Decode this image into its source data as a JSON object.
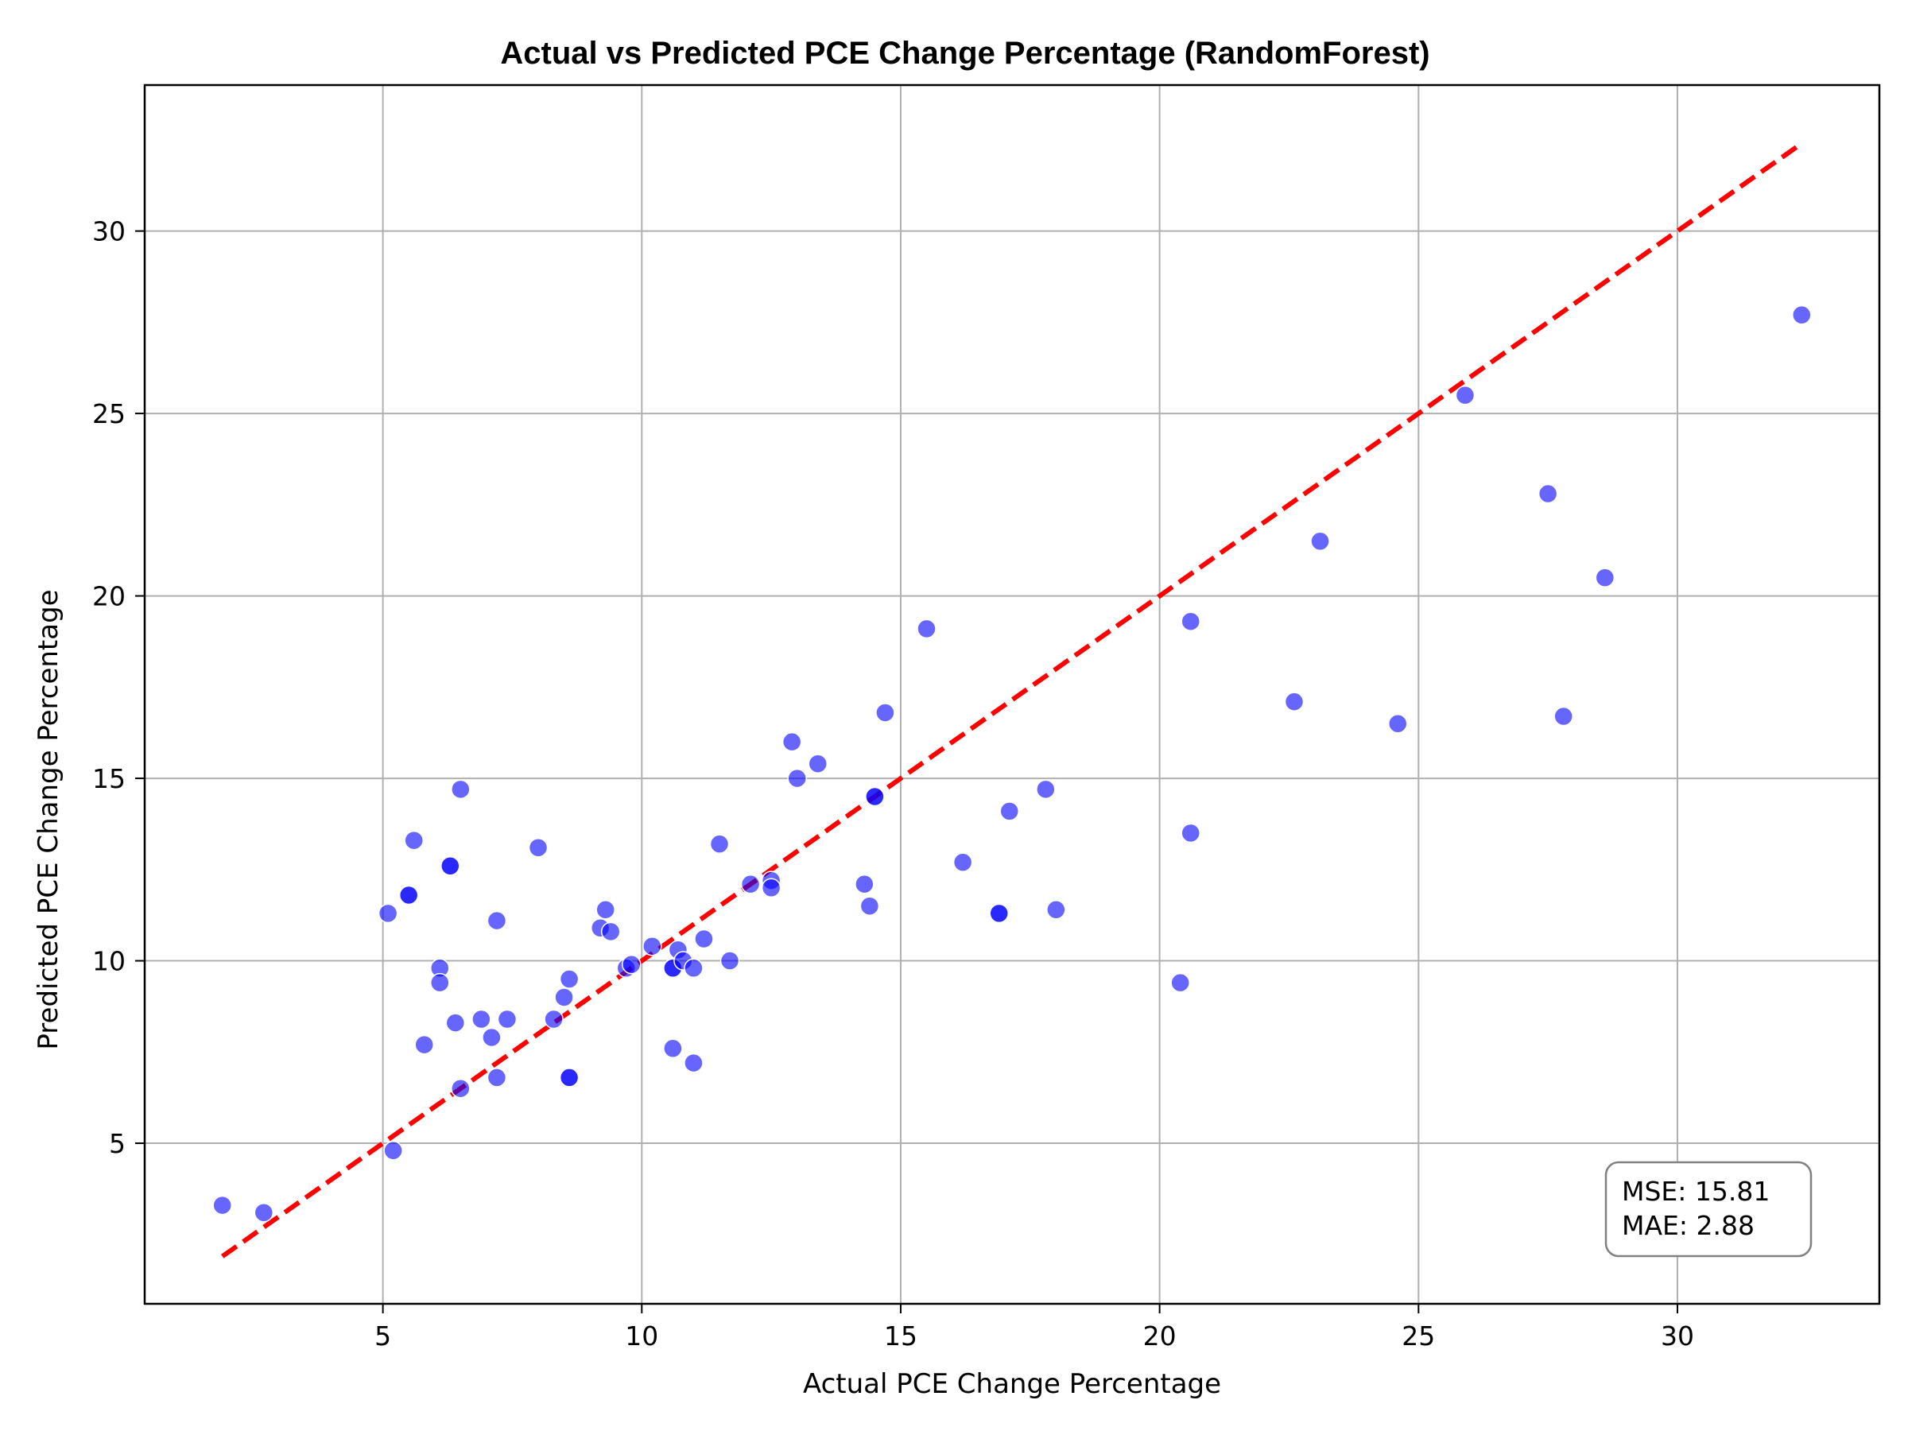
{
  "chart_data": {
    "type": "scatter",
    "title": "Actual vs Predicted PCE Change Percentage (RandomForest)",
    "xlabel": "Actual PCE Change Percentage",
    "ylabel": "Predicted PCE Change Percentage",
    "xlim": [
      0.4,
      33.9
    ],
    "ylim": [
      0.6,
      34.0
    ],
    "xticks": [
      5,
      10,
      15,
      20,
      25,
      30
    ],
    "yticks": [
      5,
      10,
      15,
      20,
      25,
      30
    ],
    "grid": true,
    "colors": {
      "points": "#0000ff",
      "reference_line": "#ff0000",
      "grid": "#b0b0b0",
      "stats_border": "#808080"
    },
    "reference_line": {
      "style": "dashed",
      "x": [
        1.9,
        32.4
      ],
      "y": [
        1.9,
        32.4
      ]
    },
    "stats": [
      "MSE: 15.81",
      "MAE: 2.88"
    ],
    "points": [
      {
        "x": 1.9,
        "y": 3.3
      },
      {
        "x": 2.7,
        "y": 3.1
      },
      {
        "x": 5.2,
        "y": 4.8
      },
      {
        "x": 5.1,
        "y": 11.3
      },
      {
        "x": 5.5,
        "y": 11.8
      },
      {
        "x": 5.5,
        "y": 11.8
      },
      {
        "x": 5.6,
        "y": 13.3
      },
      {
        "x": 5.8,
        "y": 7.7
      },
      {
        "x": 6.1,
        "y": 9.8
      },
      {
        "x": 6.1,
        "y": 9.4
      },
      {
        "x": 6.3,
        "y": 12.6
      },
      {
        "x": 6.3,
        "y": 12.6
      },
      {
        "x": 6.4,
        "y": 8.3
      },
      {
        "x": 6.5,
        "y": 6.5
      },
      {
        "x": 6.5,
        "y": 14.7
      },
      {
        "x": 6.9,
        "y": 8.4
      },
      {
        "x": 7.1,
        "y": 7.9
      },
      {
        "x": 7.2,
        "y": 6.8
      },
      {
        "x": 7.2,
        "y": 11.1
      },
      {
        "x": 7.4,
        "y": 8.4
      },
      {
        "x": 8.0,
        "y": 13.1
      },
      {
        "x": 8.3,
        "y": 8.4
      },
      {
        "x": 8.5,
        "y": 9.0
      },
      {
        "x": 8.6,
        "y": 9.5
      },
      {
        "x": 8.6,
        "y": 6.8
      },
      {
        "x": 8.6,
        "y": 6.8
      },
      {
        "x": 9.2,
        "y": 10.9
      },
      {
        "x": 9.3,
        "y": 11.4
      },
      {
        "x": 9.4,
        "y": 10.8
      },
      {
        "x": 9.7,
        "y": 9.8
      },
      {
        "x": 9.8,
        "y": 9.9
      },
      {
        "x": 10.2,
        "y": 10.4
      },
      {
        "x": 10.6,
        "y": 9.8
      },
      {
        "x": 10.6,
        "y": 9.8
      },
      {
        "x": 10.7,
        "y": 10.3
      },
      {
        "x": 10.8,
        "y": 10.0
      },
      {
        "x": 10.6,
        "y": 7.6
      },
      {
        "x": 11.0,
        "y": 9.8
      },
      {
        "x": 11.0,
        "y": 7.2
      },
      {
        "x": 11.2,
        "y": 10.6
      },
      {
        "x": 11.5,
        "y": 13.2
      },
      {
        "x": 11.7,
        "y": 10.0
      },
      {
        "x": 12.1,
        "y": 12.1
      },
      {
        "x": 12.5,
        "y": 12.2
      },
      {
        "x": 12.5,
        "y": 12.0
      },
      {
        "x": 12.9,
        "y": 16.0
      },
      {
        "x": 13.0,
        "y": 15.0
      },
      {
        "x": 13.4,
        "y": 15.4
      },
      {
        "x": 14.3,
        "y": 12.1
      },
      {
        "x": 14.4,
        "y": 11.5
      },
      {
        "x": 14.5,
        "y": 14.5
      },
      {
        "x": 14.5,
        "y": 14.5
      },
      {
        "x": 14.7,
        "y": 16.8
      },
      {
        "x": 15.5,
        "y": 19.1
      },
      {
        "x": 16.2,
        "y": 12.7
      },
      {
        "x": 16.9,
        "y": 11.3
      },
      {
        "x": 16.9,
        "y": 11.3
      },
      {
        "x": 17.1,
        "y": 14.1
      },
      {
        "x": 17.8,
        "y": 14.7
      },
      {
        "x": 18.0,
        "y": 11.4
      },
      {
        "x": 20.4,
        "y": 9.4
      },
      {
        "x": 20.6,
        "y": 19.3
      },
      {
        "x": 20.6,
        "y": 13.5
      },
      {
        "x": 22.6,
        "y": 17.1
      },
      {
        "x": 23.1,
        "y": 21.5
      },
      {
        "x": 24.6,
        "y": 16.5
      },
      {
        "x": 25.9,
        "y": 25.5
      },
      {
        "x": 27.5,
        "y": 22.8
      },
      {
        "x": 27.8,
        "y": 16.7
      },
      {
        "x": 28.6,
        "y": 20.5
      },
      {
        "x": 32.4,
        "y": 27.7
      }
    ]
  }
}
